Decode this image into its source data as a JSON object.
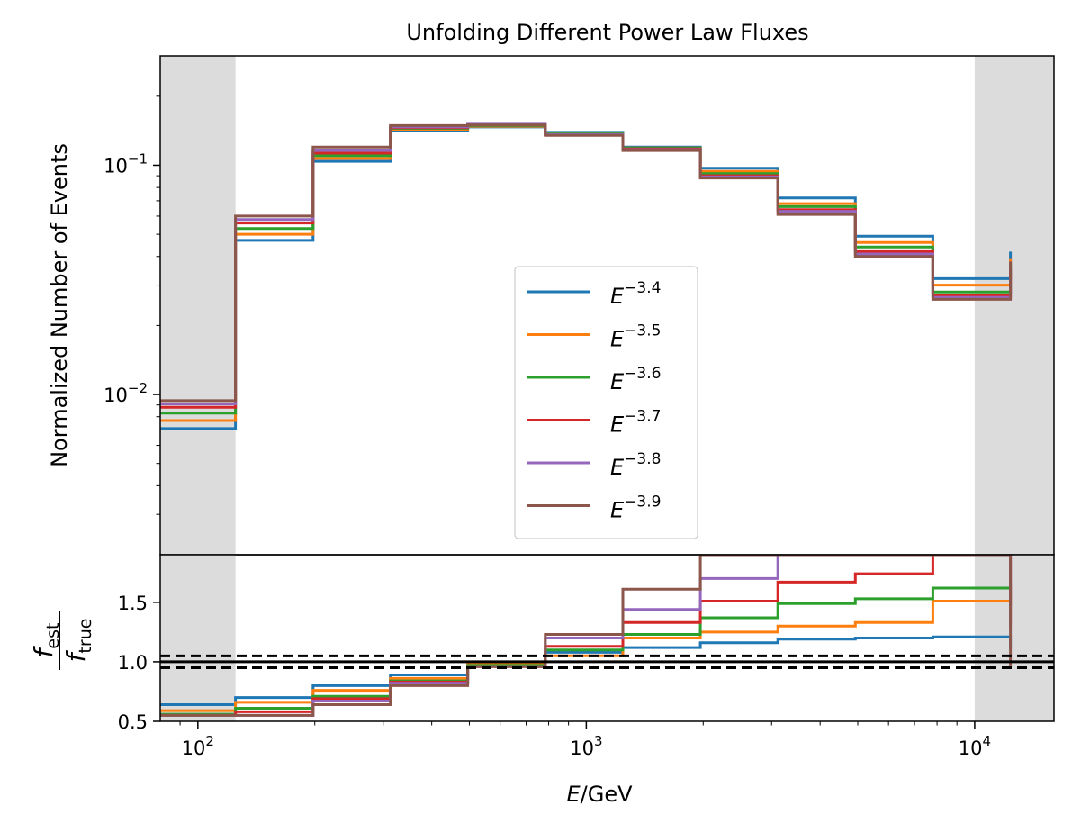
{
  "chart_data": [
    {
      "type": "line",
      "panel": "main",
      "title": "Unfolding Different Power Law Fluxes",
      "xlabel": "",
      "ylabel": "Normalized Number of Events",
      "xscale": "log",
      "yscale": "log",
      "xlim": [
        80,
        16000
      ],
      "ylim": [
        0.002,
        0.3
      ],
      "grid": false,
      "legend_position": "center-bottom",
      "shaded_x_ranges": [
        [
          80,
          125
        ],
        [
          10000,
          16000
        ]
      ],
      "bin_edges": [
        80,
        125,
        198,
        313,
        495,
        784,
        1242,
        1966,
        3113,
        4929,
        7804,
        12360
      ],
      "xticks": [
        {
          "value": 100,
          "base": "10",
          "exp": "2"
        },
        {
          "value": 1000,
          "base": "10",
          "exp": "3"
        },
        {
          "value": 10000,
          "base": "10",
          "exp": "4"
        }
      ],
      "yticks": [
        {
          "value": 0.01,
          "base": "10",
          "exp": "−2"
        },
        {
          "value": 0.1,
          "base": "10",
          "exp": "−1"
        }
      ],
      "series": [
        {
          "name_base": "E",
          "name_exp": "−3.4",
          "color": "#1f77b4",
          "values": [
            0.0071,
            0.047,
            0.104,
            0.141,
            0.147,
            0.138,
            0.12,
            0.097,
            0.072,
            0.049,
            0.032,
            0.042
          ]
        },
        {
          "name_base": "E",
          "name_exp": "−3.5",
          "color": "#ff7f0e",
          "values": [
            0.0077,
            0.05,
            0.107,
            0.143,
            0.148,
            0.137,
            0.119,
            0.094,
            0.068,
            0.046,
            0.03,
            0.039
          ]
        },
        {
          "name_base": "E",
          "name_exp": "−3.6",
          "color": "#2ca02c",
          "values": [
            0.0083,
            0.053,
            0.11,
            0.145,
            0.149,
            0.137,
            0.119,
            0.092,
            0.066,
            0.044,
            0.028,
            0.037
          ]
        },
        {
          "name_base": "E",
          "name_exp": "−3.7",
          "color": "#d62728",
          "values": [
            0.0088,
            0.056,
            0.113,
            0.146,
            0.15,
            0.136,
            0.118,
            0.09,
            0.064,
            0.042,
            0.027,
            0.035
          ]
        },
        {
          "name_base": "E",
          "name_exp": "−3.8",
          "color": "#9467bd",
          "values": [
            0.0091,
            0.058,
            0.116,
            0.147,
            0.151,
            0.136,
            0.117,
            0.089,
            0.063,
            0.041,
            0.0265,
            0.036
          ]
        },
        {
          "name_base": "E",
          "name_exp": "−3.9",
          "color": "#8c564b",
          "values": [
            0.0094,
            0.06,
            0.12,
            0.149,
            0.15,
            0.135,
            0.116,
            0.088,
            0.061,
            0.04,
            0.026,
            0.038
          ]
        }
      ]
    },
    {
      "type": "line",
      "panel": "ratio",
      "xlabel_base": "E",
      "xlabel_unit": "/GeV",
      "ylabel_num_base": "f",
      "ylabel_num_sub": "est",
      "ylabel_den_base": "f",
      "ylabel_den_sub": "true",
      "xscale": "log",
      "yscale": "linear",
      "xlim": [
        80,
        16000
      ],
      "ylim": [
        0.5,
        1.9
      ],
      "grid": false,
      "yticks": [
        "0.5",
        "1.0",
        "1.5"
      ],
      "reference_lines": {
        "solid": 1.0,
        "dashed": [
          0.95,
          1.05
        ]
      },
      "series": [
        {
          "color": "#1f77b4",
          "values": [
            0.64,
            0.7,
            0.8,
            0.89,
            0.99,
            1.08,
            1.12,
            1.16,
            1.19,
            1.2,
            1.21,
            1.11
          ]
        },
        {
          "color": "#ff7f0e",
          "values": [
            0.59,
            0.66,
            0.76,
            0.86,
            0.98,
            1.05,
            1.2,
            1.25,
            1.3,
            1.33,
            1.51,
            1.33
          ]
        },
        {
          "color": "#2ca02c",
          "values": [
            0.56,
            0.61,
            0.71,
            0.84,
            0.97,
            1.1,
            1.23,
            1.37,
            1.49,
            1.53,
            1.62,
            1.52
          ]
        },
        {
          "color": "#d62728",
          "values": [
            0.55,
            0.58,
            0.69,
            0.83,
            0.96,
            1.13,
            1.33,
            1.51,
            1.67,
            1.74,
            1.9,
            1.47
          ]
        },
        {
          "color": "#9467bd",
          "values": [
            0.55,
            0.55,
            0.67,
            0.82,
            0.96,
            1.2,
            1.44,
            1.7,
            1.9,
            1.9,
            1.9,
            1.28
          ]
        },
        {
          "color": "#8c564b",
          "values": [
            0.55,
            0.55,
            0.64,
            0.8,
            0.96,
            1.23,
            1.61,
            1.9,
            1.9,
            1.9,
            1.9,
            0.97
          ]
        }
      ]
    }
  ]
}
